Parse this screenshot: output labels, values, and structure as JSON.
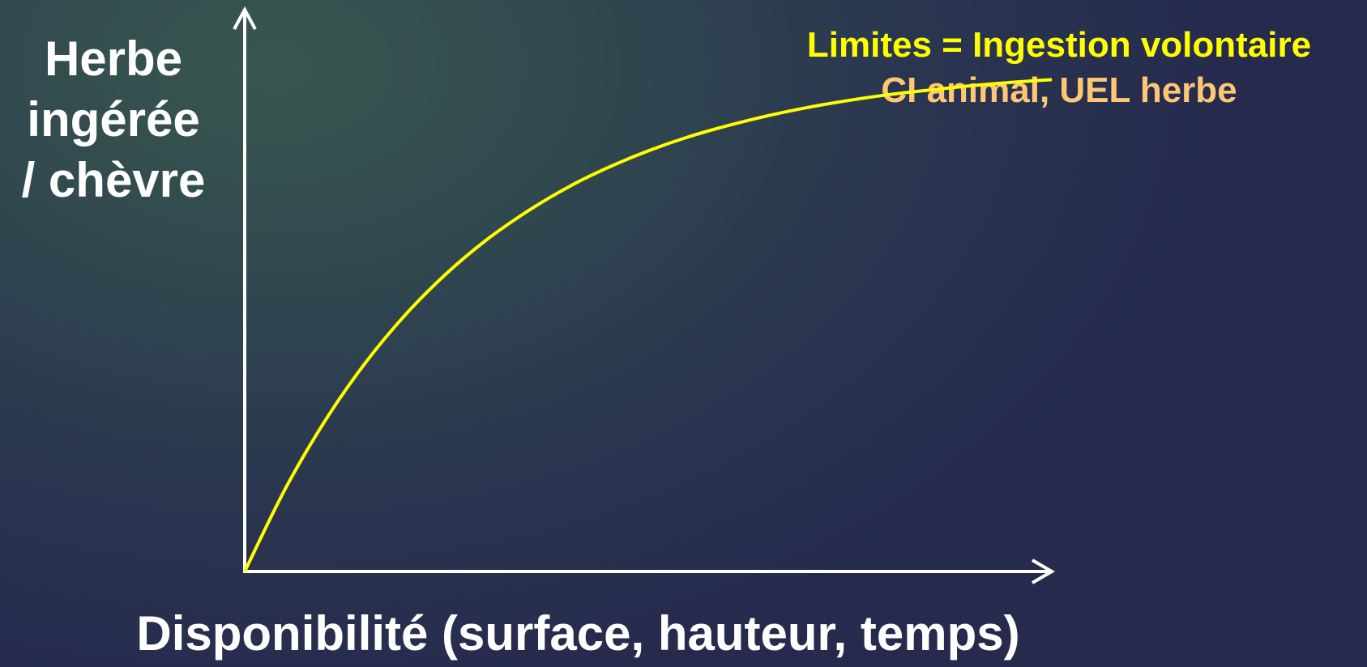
{
  "chart_data": {
    "type": "line",
    "title": "",
    "ylabel_lines": [
      "Herbe",
      "ingérée",
      "/ chèvre"
    ],
    "xlabel": "Disponibilité (surface, hauteur, temps)",
    "annotation": {
      "line1": "Limites = Ingestion volontaire",
      "line2": "CI animal, UEL herbe",
      "line1_color": "#ffff00",
      "line2_color": "#ffc774"
    },
    "axis_color": "#ffffff",
    "series": [
      {
        "color": "#ffff00",
        "x": [
          0,
          0.05,
          0.1,
          0.15,
          0.2,
          0.25,
          0.3,
          0.35,
          0.4,
          0.45,
          0.5,
          0.55,
          0.6,
          0.65,
          0.7,
          0.75,
          0.8,
          0.85,
          0.9,
          0.95,
          1
        ],
        "y": [
          0,
          0.216,
          0.397,
          0.549,
          0.676,
          0.782,
          0.871,
          0.945,
          1.008,
          1.06,
          1.104,
          1.141,
          1.171,
          1.197,
          1.219,
          1.237,
          1.252,
          1.264,
          1.275,
          1.284,
          1.291
        ]
      }
    ],
    "xlim": [
      0,
      1
    ],
    "ylim": [
      0,
      1.5
    ],
    "ticks": false,
    "grid": false,
    "legend": "none"
  }
}
